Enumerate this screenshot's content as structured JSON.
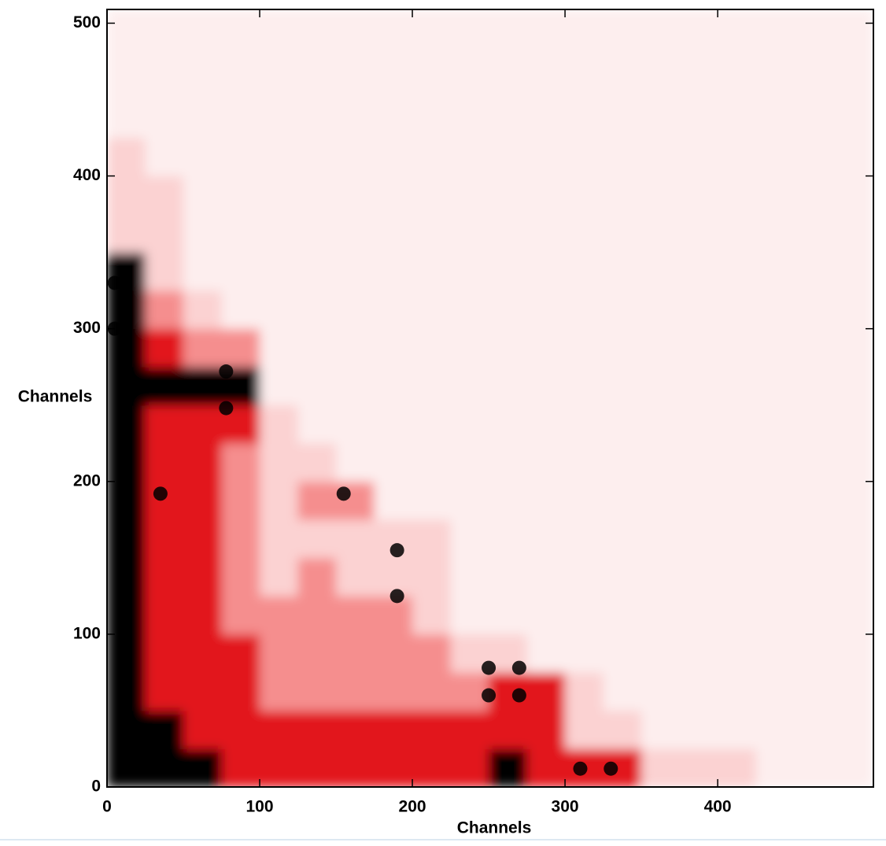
{
  "chart_data": {
    "type": "heatmap",
    "x_label": "Channels",
    "y_label": "Channels",
    "xlim": [
      0,
      502
    ],
    "ylim": [
      0,
      509
    ],
    "xticks": [
      0,
      100,
      200,
      300,
      400
    ],
    "yticks": [
      0,
      100,
      200,
      300,
      400,
      500
    ],
    "bin_width": 25,
    "background": "#fdeeee",
    "level_colors": [
      "#fdeeee",
      "#fbd2d2",
      "#f58e8e",
      "#e2161b",
      "#000000"
    ],
    "z": [
      [
        4,
        4,
        4,
        3,
        3,
        3,
        3,
        3,
        3,
        3,
        4,
        3,
        3,
        3,
        1,
        1,
        1,
        0,
        0,
        0
      ],
      [
        4,
        4,
        3,
        3,
        3,
        3,
        3,
        3,
        3,
        3,
        3,
        3,
        1,
        1,
        0,
        0,
        0,
        0,
        0,
        0
      ],
      [
        4,
        3,
        3,
        3,
        2,
        2,
        2,
        2,
        2,
        2,
        3,
        3,
        1,
        0,
        0,
        0,
        0,
        0,
        0,
        0
      ],
      [
        4,
        3,
        3,
        3,
        2,
        2,
        2,
        2,
        2,
        1,
        1,
        0,
        0,
        0,
        0,
        0,
        0,
        0,
        0,
        0
      ],
      [
        4,
        3,
        3,
        2,
        2,
        2,
        2,
        2,
        1,
        0,
        0,
        0,
        0,
        0,
        0,
        0,
        0,
        0,
        0,
        0
      ],
      [
        4,
        3,
        3,
        2,
        1,
        2,
        1,
        1,
        1,
        0,
        0,
        0,
        0,
        0,
        0,
        0,
        0,
        0,
        0,
        0
      ],
      [
        4,
        3,
        3,
        2,
        1,
        1,
        1,
        1,
        1,
        0,
        0,
        0,
        0,
        0,
        0,
        0,
        0,
        0,
        0,
        0
      ],
      [
        4,
        3,
        3,
        2,
        1,
        2,
        2,
        0,
        0,
        0,
        0,
        0,
        0,
        0,
        0,
        0,
        0,
        0,
        0,
        0
      ],
      [
        4,
        3,
        3,
        2,
        1,
        1,
        0,
        0,
        0,
        0,
        0,
        0,
        0,
        0,
        0,
        0,
        0,
        0,
        0,
        0
      ],
      [
        4,
        3,
        3,
        3,
        1,
        0,
        0,
        0,
        0,
        0,
        0,
        0,
        0,
        0,
        0,
        0,
        0,
        0,
        0,
        0
      ],
      [
        4,
        4,
        4,
        4,
        0,
        0,
        0,
        0,
        0,
        0,
        0,
        0,
        0,
        0,
        0,
        0,
        0,
        0,
        0,
        0
      ],
      [
        4,
        3,
        2,
        2,
        0,
        0,
        0,
        0,
        0,
        0,
        0,
        0,
        0,
        0,
        0,
        0,
        0,
        0,
        0,
        0
      ],
      [
        4,
        2,
        1,
        0,
        0,
        0,
        0,
        0,
        0,
        0,
        0,
        0,
        0,
        0,
        0,
        0,
        0,
        0,
        0,
        0
      ],
      [
        4,
        1,
        0,
        0,
        0,
        0,
        0,
        0,
        0,
        0,
        0,
        0,
        0,
        0,
        0,
        0,
        0,
        0,
        0,
        0
      ],
      [
        1,
        1,
        0,
        0,
        0,
        0,
        0,
        0,
        0,
        0,
        0,
        0,
        0,
        0,
        0,
        0,
        0,
        0,
        0,
        0
      ],
      [
        1,
        1,
        0,
        0,
        0,
        0,
        0,
        0,
        0,
        0,
        0,
        0,
        0,
        0,
        0,
        0,
        0,
        0,
        0,
        0
      ],
      [
        1,
        0,
        0,
        0,
        0,
        0,
        0,
        0,
        0,
        0,
        0,
        0,
        0,
        0,
        0,
        0,
        0,
        0,
        0,
        0
      ],
      [
        0,
        0,
        0,
        0,
        0,
        0,
        0,
        0,
        0,
        0,
        0,
        0,
        0,
        0,
        0,
        0,
        0,
        0,
        0,
        0
      ],
      [
        0,
        0,
        0,
        0,
        0,
        0,
        0,
        0,
        0,
        0,
        0,
        0,
        0,
        0,
        0,
        0,
        0,
        0,
        0,
        0
      ],
      [
        0,
        0,
        0,
        0,
        0,
        0,
        0,
        0,
        0,
        0,
        0,
        0,
        0,
        0,
        0,
        0,
        0,
        0,
        0,
        0
      ]
    ],
    "peaks": {
      "x": [
        78,
        78,
        250,
        270,
        250,
        270,
        310,
        330,
        155,
        190,
        5,
        5,
        35,
        190
      ],
      "y": [
        272,
        248,
        78,
        78,
        60,
        60,
        12,
        12,
        192,
        155,
        330,
        300,
        192,
        125
      ]
    }
  }
}
